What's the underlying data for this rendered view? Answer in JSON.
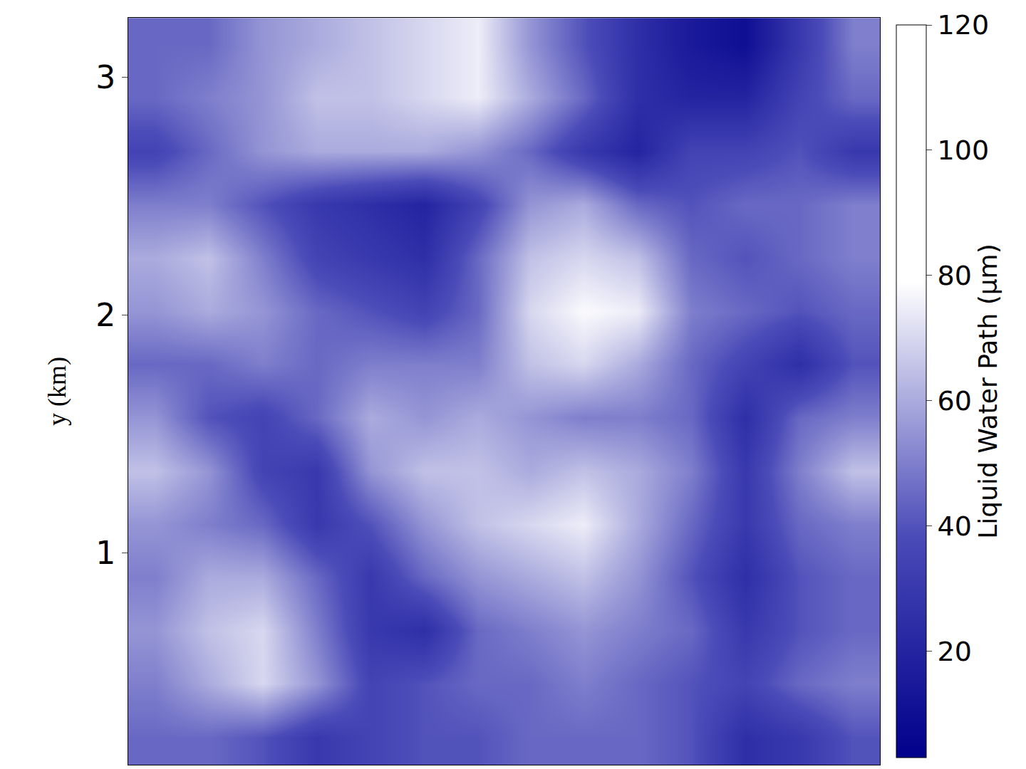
{
  "chart_data": {
    "type": "heatmap",
    "y_label": "y (km)",
    "colorbar_title": "Liquid Water Path (μm)",
    "tick_labels": "y",
    "xlim": [
      0,
      3.07
    ],
    "ylim": [
      0.11,
      3.25
    ],
    "yticks": [
      1,
      2,
      3
    ],
    "colorbar_range": [
      3,
      120
    ],
    "colorbar_ticks": [
      20,
      40,
      60,
      80,
      100,
      120
    ],
    "x": [
      0.11,
      0.33,
      0.55,
      0.77,
      0.99,
      1.21,
      1.43,
      1.64,
      1.86,
      2.08,
      2.3,
      2.52,
      2.74,
      2.96
    ],
    "y": [
      0.224,
      0.451,
      0.674,
      0.898,
      1.122,
      1.346,
      1.57,
      1.794,
      2.017,
      2.241,
      2.465,
      2.689,
      2.913,
      3.137
    ],
    "z": [
      [
        45,
        45,
        40,
        30,
        35,
        40,
        40,
        45,
        45,
        45,
        40,
        25,
        30,
        40
      ],
      [
        50,
        60,
        70,
        55,
        35,
        40,
        45,
        45,
        50,
        45,
        40,
        35,
        45,
        50
      ],
      [
        55,
        65,
        70,
        50,
        30,
        25,
        45,
        50,
        55,
        50,
        45,
        30,
        40,
        45
      ],
      [
        50,
        60,
        60,
        45,
        30,
        45,
        55,
        60,
        65,
        55,
        40,
        25,
        40,
        45
      ],
      [
        55,
        50,
        45,
        30,
        40,
        55,
        65,
        70,
        75,
        60,
        45,
        30,
        45,
        50
      ],
      [
        65,
        55,
        35,
        30,
        55,
        65,
        65,
        60,
        65,
        60,
        50,
        30,
        50,
        65
      ],
      [
        55,
        40,
        35,
        45,
        60,
        55,
        60,
        55,
        50,
        50,
        45,
        25,
        45,
        50
      ],
      [
        45,
        45,
        50,
        45,
        50,
        50,
        50,
        65,
        70,
        60,
        45,
        35,
        25,
        40
      ],
      [
        55,
        60,
        55,
        45,
        40,
        35,
        45,
        70,
        78,
        75,
        50,
        45,
        40,
        45
      ],
      [
        60,
        65,
        50,
        35,
        30,
        25,
        45,
        65,
        70,
        65,
        45,
        40,
        45,
        50
      ],
      [
        50,
        50,
        40,
        30,
        25,
        20,
        35,
        55,
        60,
        45,
        40,
        45,
        45,
        50
      ],
      [
        35,
        45,
        55,
        60,
        60,
        60,
        55,
        45,
        30,
        20,
        35,
        35,
        40,
        30
      ],
      [
        45,
        50,
        55,
        65,
        65,
        70,
        75,
        60,
        45,
        25,
        20,
        20,
        35,
        45
      ],
      [
        45,
        45,
        55,
        60,
        65,
        70,
        75,
        55,
        40,
        25,
        15,
        10,
        30,
        50
      ]
    ]
  }
}
